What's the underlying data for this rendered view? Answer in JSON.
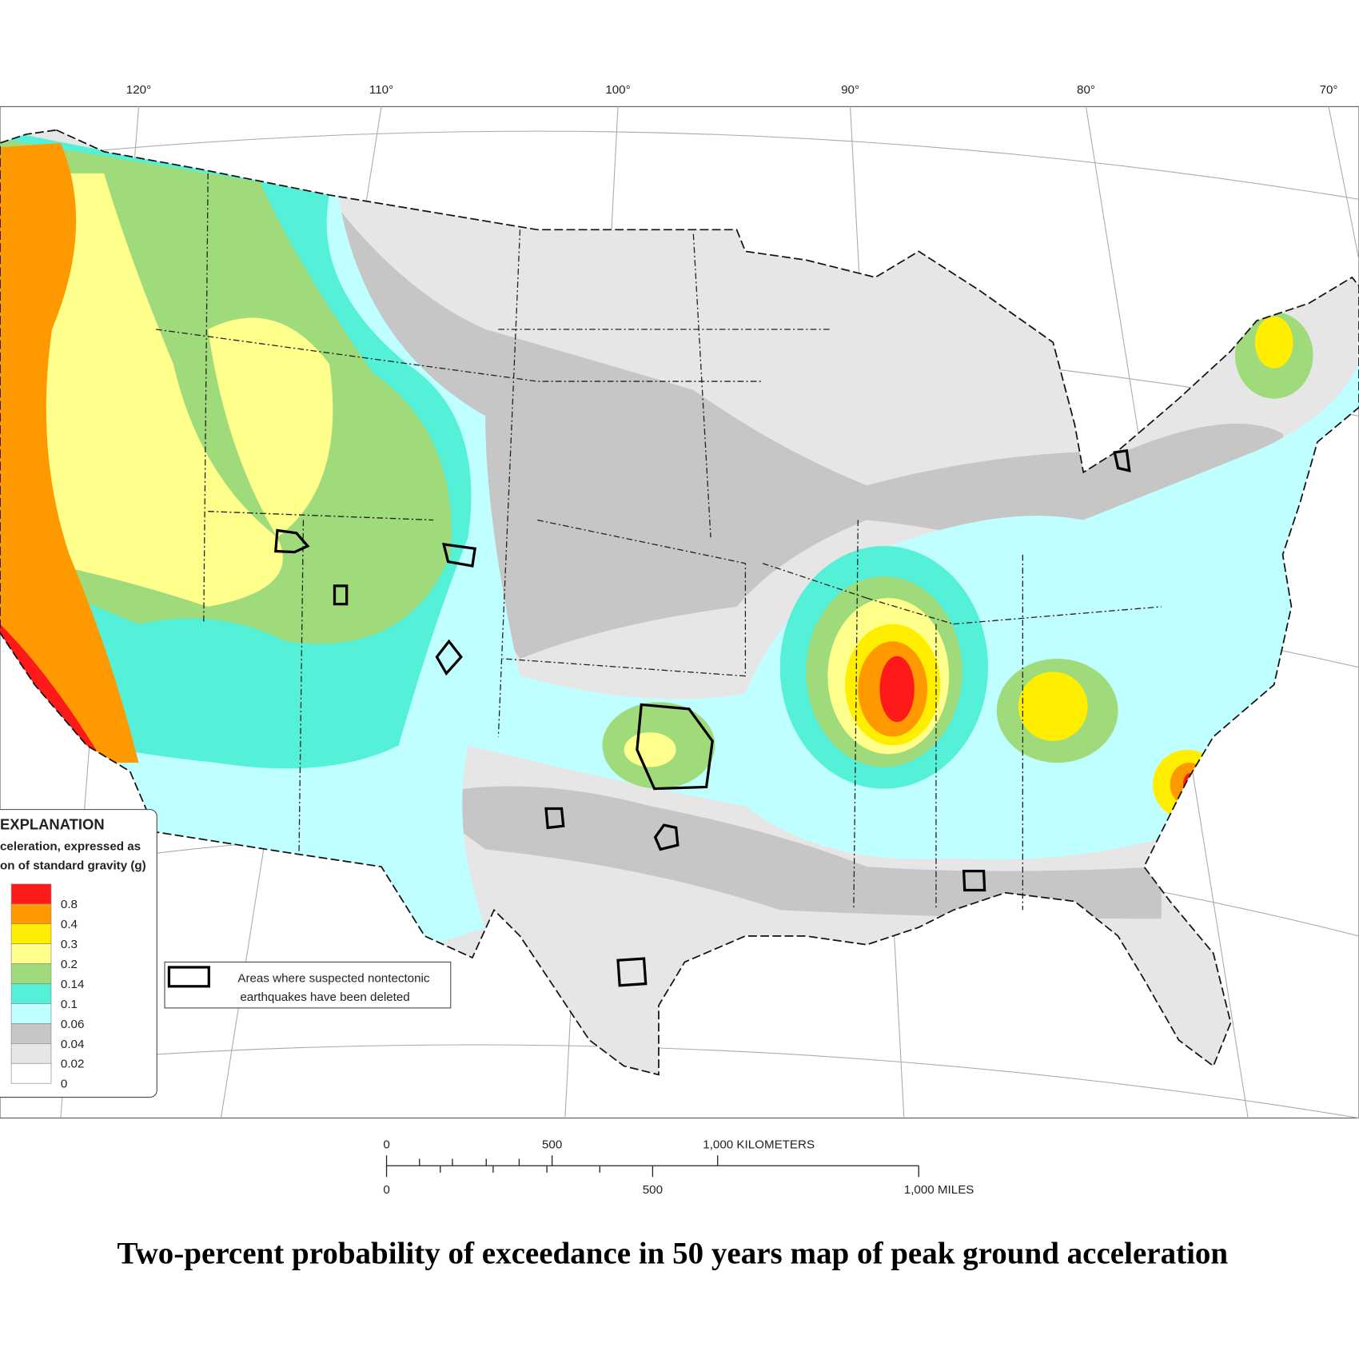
{
  "map": {
    "title": "Two-percent probability of exceedance in 50 years map of peak ground acceleration",
    "longitudes": [
      "120°",
      "110°",
      "100°",
      "90°",
      "80°",
      "70°"
    ],
    "legend": {
      "title": "EXPLANATION",
      "subtitle_lines": [
        "celeration, expressed as",
        "on of standard gravity (g)"
      ],
      "items": [
        {
          "label": "0.8",
          "color": "#ff1a1a"
        },
        {
          "label": "0.4",
          "color": "#ff9900"
        },
        {
          "label": "0.3",
          "color": "#ffee00"
        },
        {
          "label": "0.2",
          "color": "#ffff8c"
        },
        {
          "label": "0.14",
          "color": "#9fdb7a"
        },
        {
          "label": "0.1",
          "color": "#55f0d8"
        },
        {
          "label": "0.06",
          "color": "#c0ffff"
        },
        {
          "label": "0.04",
          "color": "#c6c6c6"
        },
        {
          "label": "0.02",
          "color": "#e6e6e6"
        },
        {
          "label": "0",
          "color": "#ffffff"
        }
      ]
    },
    "note": [
      "Areas where suspected nontectonic",
      "earthquakes have been deleted"
    ],
    "scale_bar": {
      "km_labels": [
        "0",
        "500",
        "1,000  KILOMETERS"
      ],
      "mile_labels": [
        "0",
        "500",
        "1,000  MILES"
      ]
    }
  }
}
